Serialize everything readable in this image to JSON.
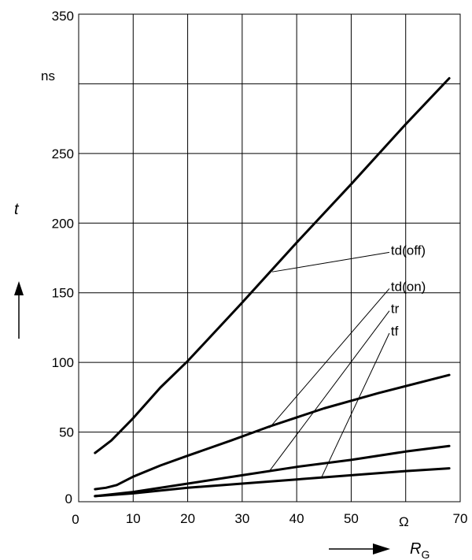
{
  "chart_data": {
    "type": "line",
    "x_unit_label": "Ω",
    "y_unit_label": "ns",
    "xlabel": "R",
    "xlabel_sub": "G",
    "ylabel": "t",
    "xlim": [
      0,
      70
    ],
    "ylim": [
      0,
      350
    ],
    "x_ticks": [
      0,
      10,
      20,
      30,
      40,
      50,
      60,
      70
    ],
    "x_tick_labels": [
      "0",
      "10",
      "20",
      "30",
      "40",
      "50",
      "",
      "70"
    ],
    "y_ticks": [
      0,
      50,
      100,
      150,
      200,
      250,
      300,
      350
    ],
    "y_tick_labels": [
      "0",
      "50",
      "100",
      "150",
      "200",
      "250",
      "",
      "350"
    ],
    "grid": true,
    "series": [
      {
        "name": "td(off)",
        "x": [
          3,
          6,
          10,
          15,
          20,
          30,
          40,
          50,
          60,
          68
        ],
        "y": [
          35,
          44,
          60,
          82,
          101,
          143,
          186,
          228,
          271,
          304
        ]
      },
      {
        "name": "td(on)",
        "x": [
          3,
          5,
          7,
          10,
          15,
          20,
          28,
          35,
          45,
          55,
          68
        ],
        "y": [
          9,
          10,
          12,
          18,
          26,
          33,
          44,
          54,
          67,
          78,
          91
        ]
      },
      {
        "name": "tr",
        "x": [
          3,
          10,
          20,
          30,
          40,
          50,
          60,
          68
        ],
        "y": [
          4,
          7,
          13,
          19,
          25,
          30,
          36,
          40
        ]
      },
      {
        "name": "tf",
        "x": [
          3,
          10,
          20,
          30,
          40,
          50,
          60,
          68
        ],
        "y": [
          4,
          6,
          10,
          13,
          16,
          19,
          22,
          24
        ]
      }
    ],
    "annotations": [
      {
        "series": "td(off)",
        "label": "td(off)",
        "point_x": 35.5,
        "point_y": 165,
        "label_anchor_x": 57,
        "label_anchor_y": 179
      },
      {
        "series": "td(on)",
        "label": "td(on)",
        "point_x": 35,
        "point_y": 53,
        "label_anchor_x": 57,
        "label_anchor_y": 153
      },
      {
        "series": "tr",
        "label": "tr",
        "point_x": 35,
        "point_y": 22,
        "label_anchor_x": 57,
        "label_anchor_y": 137
      },
      {
        "series": "tf",
        "label": "tf",
        "point_x": 44.5,
        "point_y": 17,
        "label_anchor_x": 57,
        "label_anchor_y": 121
      }
    ]
  }
}
